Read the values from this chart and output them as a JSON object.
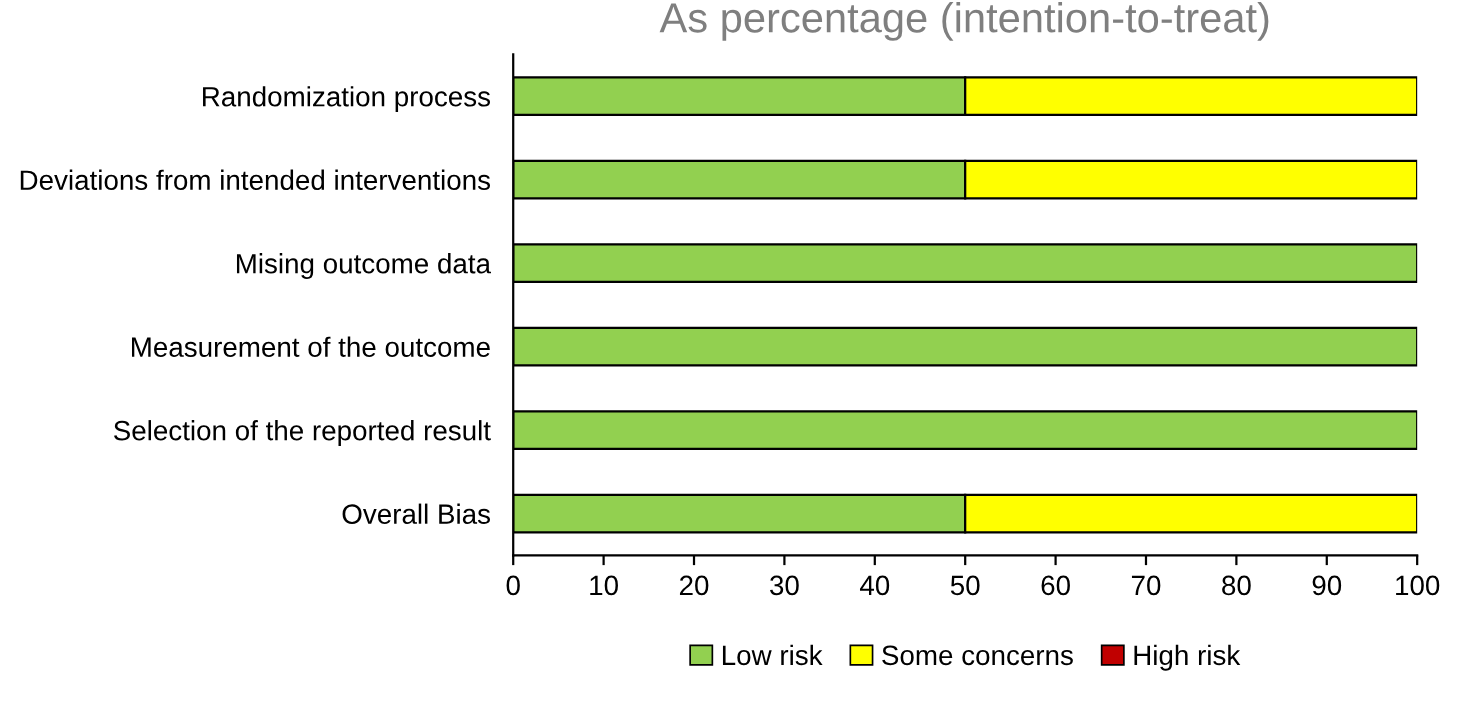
{
  "chart_data": {
    "type": "bar",
    "orientation": "horizontal",
    "stacked": true,
    "title": "As percentage (intention-to-treat)",
    "categories": [
      "Randomization process",
      "Deviations from intended interventions",
      "Mising outcome data",
      "Measurement of the outcome",
      "Selection of the reported result",
      "Overall Bias"
    ],
    "series": [
      {
        "name": "Low risk",
        "color": "#92d050",
        "values": [
          50,
          50,
          100,
          100,
          100,
          50
        ]
      },
      {
        "name": "Some concerns",
        "color": "#ffff00",
        "values": [
          50,
          50,
          0,
          0,
          0,
          50
        ]
      },
      {
        "name": "High risk",
        "color": "#c00000",
        "values": [
          0,
          0,
          0,
          0,
          0,
          0
        ]
      }
    ],
    "xlim": [
      0,
      100
    ],
    "xticks": [
      0,
      10,
      20,
      30,
      40,
      50,
      60,
      70,
      80,
      90,
      100
    ],
    "grid": false,
    "legend": "bottom"
  }
}
